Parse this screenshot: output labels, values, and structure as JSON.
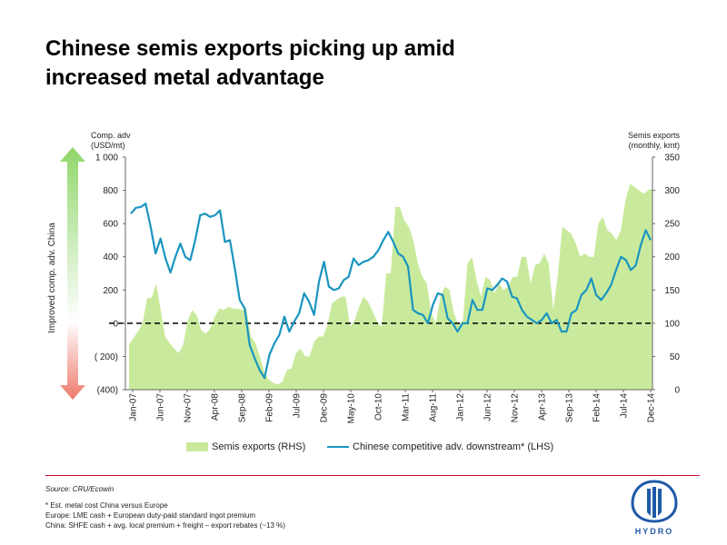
{
  "title": {
    "line1": "Chinese semis exports picking up amid",
    "line2": "increased metal advantage"
  },
  "chart_data": {
    "type": "line",
    "lhs_unit": [
      "Comp. adv",
      "(USD/mt)"
    ],
    "rhs_unit": [
      "Semis exports",
      "(monthly, kmt)"
    ],
    "side_label": "Improved comp. adv. China",
    "lhs_ylim": [
      -400,
      1000
    ],
    "rhs_ylim": [
      0,
      350
    ],
    "lhs_ticks": [
      "1 000",
      "800",
      "600",
      "400",
      "200",
      "0",
      "( 200)",
      "(400)"
    ],
    "lhs_tick_values": [
      1000,
      800,
      600,
      400,
      200,
      0,
      -200,
      -400
    ],
    "rhs_ticks": [
      "350",
      "300",
      "250",
      "200",
      "150",
      "100",
      "50",
      "0"
    ],
    "rhs_tick_values": [
      350,
      300,
      250,
      200,
      150,
      100,
      50,
      0
    ],
    "x_tick_labels": [
      "Jan-07",
      "Jun-07",
      "Nov-07",
      "Apr-08",
      "Sep-08",
      "Feb-09",
      "Jul-09",
      "Dec-09",
      "May-10",
      "Oct-10",
      "Mar-11",
      "Aug-11",
      "Jan-12",
      "Jun-12",
      "Nov-12",
      "Apr-13",
      "Sep-13",
      "Feb-14",
      "Jul-14",
      "Dec-14"
    ],
    "x_tick_index": [
      0,
      5,
      10,
      15,
      20,
      25,
      30,
      35,
      40,
      45,
      50,
      55,
      60,
      65,
      70,
      75,
      80,
      85,
      90,
      95
    ],
    "series": [
      {
        "name": "Semis exports (RHS)",
        "axis": "rhs",
        "style": "area",
        "color": "#c9ea9c",
        "values": [
          68,
          78,
          88,
          100,
          138,
          138,
          160,
          120,
          80,
          70,
          62,
          55,
          68,
          104,
          120,
          112,
          90,
          84,
          92,
          110,
          122,
          120,
          125,
          122,
          122,
          120,
          122,
          80,
          70,
          50,
          25,
          15,
          10,
          8,
          12,
          30,
          32,
          55,
          62,
          50,
          50,
          72,
          80,
          80,
          98,
          130,
          135,
          140,
          140,
          95,
          105,
          125,
          140,
          132,
          118,
          102,
          95,
          175,
          175,
          275,
          275,
          255,
          245,
          225,
          190,
          170,
          160,
          115,
          100,
          140,
          155,
          150,
          115,
          98,
          104,
          190,
          200,
          165,
          140,
          170,
          165,
          145,
          160,
          150,
          155,
          170,
          170,
          200,
          200,
          160,
          188,
          190,
          205,
          190,
          120,
          170,
          245,
          240,
          235,
          220,
          200,
          205,
          200,
          200,
          250,
          260,
          240,
          235,
          225,
          240,
          285,
          310,
          305,
          300,
          295,
          300,
          303
        ],
        "values_note": ""
      },
      {
        "name": "Chinese competitive adv. downstream* (LHS)",
        "axis": "lhs",
        "style": "line",
        "color": "#1a95c0",
        "values": [
          660,
          695,
          700,
          720,
          580,
          420,
          510,
          390,
          305,
          400,
          480,
          400,
          380,
          500,
          650,
          660,
          640,
          650,
          680,
          490,
          500,
          330,
          140,
          90,
          -130,
          -210,
          -280,
          -330,
          -190,
          -120,
          -70,
          40,
          -50,
          10,
          60,
          180,
          130,
          50,
          250,
          370,
          220,
          200,
          210,
          260,
          280,
          390,
          350,
          370,
          380,
          400,
          440,
          500,
          550,
          490,
          420,
          400,
          340,
          80,
          60,
          50,
          0,
          110,
          180,
          170,
          30,
          0,
          -50,
          0,
          0,
          140,
          80,
          80,
          210,
          200,
          230,
          270,
          250,
          160,
          150,
          80,
          40,
          20,
          0,
          20,
          60,
          0,
          20,
          -50,
          -50,
          60,
          80,
          170,
          200,
          270,
          170,
          140,
          180,
          230,
          320,
          400,
          380,
          320,
          350,
          470,
          560,
          500
        ]
      }
    ],
    "zero_line": "dashed",
    "legend_position": "bottom"
  },
  "source": "Source: CRU/Ecowin",
  "notes": [
    "* Est. metal cost China versus Europe",
    "Europe: LME cash + European duty-paid standard ingot premium",
    "China: SHFE cash + avg. local premium + freight – export rebates (~13 %)"
  ],
  "brand": {
    "name": "HYDRO",
    "color": "#1f5aa8"
  },
  "colors": {
    "arrow_up": "#9fdc7a",
    "arrow_down": "#f08a7e",
    "rule": "#d7002a"
  }
}
